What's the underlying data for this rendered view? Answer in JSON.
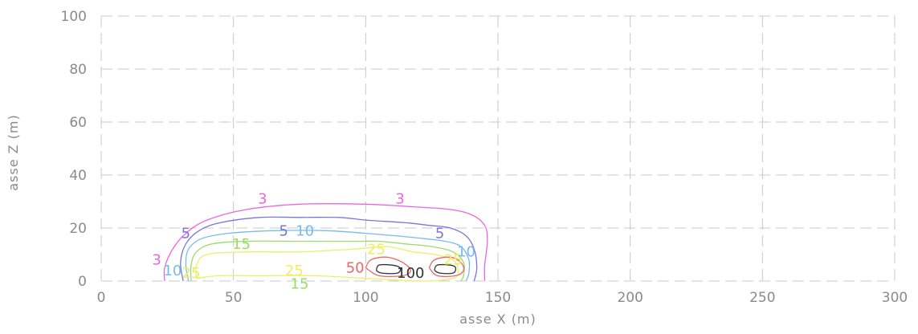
{
  "chart_data": {
    "type": "contour",
    "title": "",
    "xlabel": "asse X (m)",
    "ylabel": "asse Z (m)",
    "xlim": [
      0,
      300
    ],
    "ylim": [
      0,
      100
    ],
    "x_ticks": [
      0,
      50,
      100,
      150,
      200,
      250,
      300
    ],
    "y_ticks": [
      0,
      20,
      40,
      60,
      80,
      100
    ],
    "x_tick_labels": [
      "0",
      "50",
      "100",
      "150",
      "200",
      "250",
      "300"
    ],
    "y_tick_labels": [
      "0",
      "20",
      "40",
      "60",
      "80",
      "100"
    ],
    "grid": true,
    "colors": {
      "grid": "#c8c8c8",
      "tick_text": "#8a8a8a"
    },
    "contours": [
      {
        "level": "3",
        "color": "#ee66dd",
        "points": [
          [
            24,
            0
          ],
          [
            24,
            5
          ],
          [
            27,
            12
          ],
          [
            32,
            18
          ],
          [
            40,
            23
          ],
          [
            55,
            27
          ],
          [
            75,
            29
          ],
          [
            100,
            29
          ],
          [
            118,
            28
          ],
          [
            132,
            27
          ],
          [
            140,
            25
          ],
          [
            145,
            21
          ],
          [
            146,
            15
          ],
          [
            145,
            6
          ],
          [
            145,
            0
          ]
        ],
        "labels": [
          {
            "text": "3",
            "x": 61,
            "y": 31
          },
          {
            "text": "3",
            "x": 113,
            "y": 31
          },
          {
            "text": "3",
            "x": 21,
            "y": 8
          }
        ]
      },
      {
        "level": "5",
        "color": "#7777dd",
        "points": [
          [
            31,
            0
          ],
          [
            30,
            7
          ],
          [
            32,
            14
          ],
          [
            37,
            19
          ],
          [
            45,
            22
          ],
          [
            60,
            24
          ],
          [
            75,
            24
          ],
          [
            90,
            24
          ],
          [
            100,
            23
          ],
          [
            115,
            22
          ],
          [
            124,
            21
          ],
          [
            132,
            20
          ],
          [
            138,
            17
          ],
          [
            141,
            12
          ],
          [
            142,
            5
          ],
          [
            141,
            0
          ]
        ],
        "labels": [
          {
            "text": "5",
            "x": 32,
            "y": 18
          },
          {
            "text": "5",
            "x": 69,
            "y": 19
          },
          {
            "text": "5",
            "x": 128,
            "y": 18
          }
        ]
      },
      {
        "level": "10",
        "color": "#77bbee",
        "points": [
          [
            33,
            0
          ],
          [
            32,
            6
          ],
          [
            33,
            12
          ],
          [
            38,
            16
          ],
          [
            48,
            18
          ],
          [
            65,
            19
          ],
          [
            85,
            19
          ],
          [
            100,
            18
          ],
          [
            112,
            17
          ],
          [
            122,
            16
          ],
          [
            130,
            15
          ],
          [
            136,
            13
          ],
          [
            139,
            8
          ],
          [
            139,
            3
          ],
          [
            138,
            0
          ]
        ],
        "labels": [
          {
            "text": "10",
            "x": 77,
            "y": 19
          },
          {
            "text": "10",
            "x": 27,
            "y": 4
          },
          {
            "text": "10",
            "x": 138,
            "y": 11
          }
        ]
      },
      {
        "level": "15",
        "color": "#99dd66",
        "points": [
          [
            34,
            0
          ],
          [
            34,
            6
          ],
          [
            36,
            11
          ],
          [
            42,
            14
          ],
          [
            55,
            15
          ],
          [
            75,
            15
          ],
          [
            95,
            15
          ],
          [
            105,
            15
          ],
          [
            115,
            14
          ],
          [
            125,
            13
          ],
          [
            133,
            11
          ],
          [
            137,
            7
          ],
          [
            137,
            2
          ],
          [
            136,
            0
          ]
        ],
        "labels": [
          {
            "text": "15",
            "x": 53,
            "y": 14
          },
          {
            "text": "15",
            "x": 75,
            "y": -1
          }
        ]
      },
      {
        "level": "25",
        "color": "#eeee66",
        "points": [
          [
            36,
            1
          ],
          [
            36,
            6
          ],
          [
            40,
            10
          ],
          [
            55,
            11
          ],
          [
            75,
            11
          ],
          [
            95,
            12
          ],
          [
            108,
            13
          ],
          [
            118,
            11
          ],
          [
            126,
            10
          ],
          [
            133,
            8
          ],
          [
            135,
            4
          ],
          [
            133,
            1
          ],
          [
            120,
            0
          ],
          [
            100,
            1
          ],
          [
            80,
            2
          ],
          [
            60,
            2
          ],
          [
            45,
            2
          ],
          [
            36,
            1
          ]
        ],
        "labels": [
          {
            "text": "25",
            "x": 34,
            "y": 3
          },
          {
            "text": "25",
            "x": 73,
            "y": 4
          },
          {
            "text": "25",
            "x": 104,
            "y": 12
          },
          {
            "text": "25",
            "x": 133,
            "y": 8
          }
        ]
      },
      {
        "level": "50",
        "color": "#ee6666",
        "points": [
          [
            100,
            5
          ],
          [
            102,
            8
          ],
          [
            108,
            9
          ],
          [
            114,
            7
          ],
          [
            117,
            4
          ],
          [
            114,
            2
          ],
          [
            105,
            2
          ],
          [
            100,
            5
          ]
        ],
        "labels": [
          {
            "text": "50",
            "x": 96,
            "y": 5
          }
        ]
      },
      {
        "level": "50b",
        "color": "#ee6666",
        "points": [
          [
            124,
            5
          ],
          [
            126,
            8
          ],
          [
            132,
            9
          ],
          [
            136,
            7
          ],
          [
            137,
            4
          ],
          [
            134,
            2
          ],
          [
            127,
            2
          ],
          [
            124,
            5
          ]
        ],
        "labels": []
      },
      {
        "level": "100",
        "color": "#333333",
        "points": [
          [
            104,
            4
          ],
          [
            105,
            6
          ],
          [
            110,
            6
          ],
          [
            113,
            5
          ],
          [
            112,
            3
          ],
          [
            106,
            3
          ],
          [
            104,
            4
          ]
        ],
        "labels": [
          {
            "text": "100",
            "x": 117,
            "y": 3
          }
        ]
      },
      {
        "level": "100b",
        "color": "#333333",
        "points": [
          [
            126,
            4
          ],
          [
            127,
            6
          ],
          [
            132,
            6
          ],
          [
            134,
            5
          ],
          [
            133,
            3
          ],
          [
            128,
            3
          ],
          [
            126,
            4
          ]
        ],
        "labels": []
      }
    ]
  }
}
